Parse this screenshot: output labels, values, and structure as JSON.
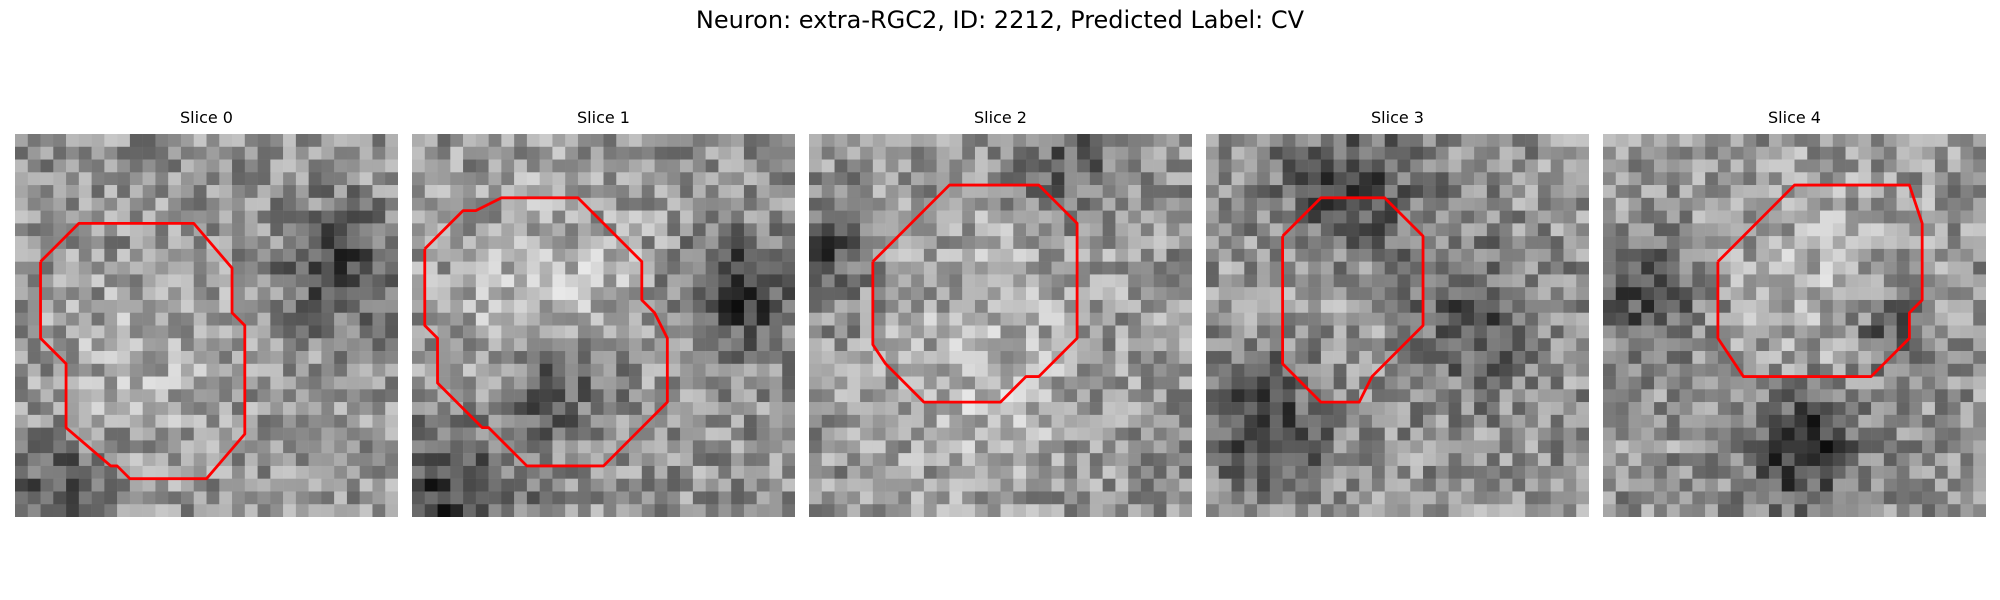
{
  "figure": {
    "title": "Neuron: extra-RGC2, ID: 2212, Predicted Label: CV"
  },
  "panels": [
    {
      "title": "Slice 0"
    },
    {
      "title": "Slice 1"
    },
    {
      "title": "Slice 2"
    },
    {
      "title": "Slice 3"
    },
    {
      "title": "Slice 4"
    }
  ],
  "colors": {
    "contour": "#ff0000",
    "background": "#ffffff"
  }
}
